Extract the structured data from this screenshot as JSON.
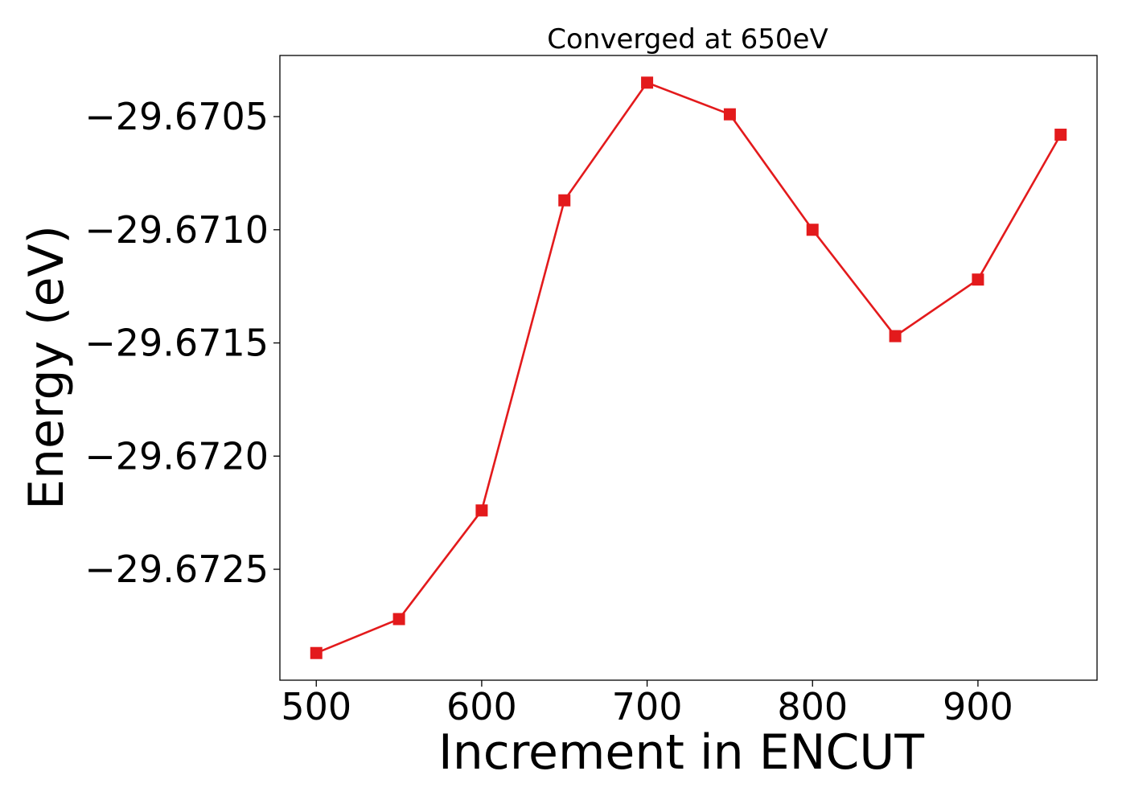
{
  "chart_data": {
    "type": "line",
    "title": "Converged at 650eV",
    "xlabel": "Increment in ENCUT",
    "ylabel": "Energy (eV)",
    "xlim": [
      478,
      972
    ],
    "ylim": [
      -29.67299,
      -29.67023
    ],
    "x_ticks": [
      500,
      600,
      700,
      800,
      900
    ],
    "x_tick_labels": [
      "500",
      "600",
      "700",
      "800",
      "900"
    ],
    "y_ticks": [
      -29.6705,
      -29.671,
      -29.6715,
      -29.672,
      -29.6725
    ],
    "y_tick_labels": [
      "−29.6705",
      "−29.6710",
      "−29.6715",
      "−29.6720",
      "−29.6725"
    ],
    "grid": false,
    "series": [
      {
        "color": "#e31a1c",
        "marker": "square",
        "x": [
          500,
          550,
          600,
          650,
          700,
          750,
          800,
          850,
          900,
          950
        ],
        "y": [
          -29.67287,
          -29.67272,
          -29.67224,
          -29.67087,
          -29.67035,
          -29.67049,
          -29.671,
          -29.67147,
          -29.67122,
          -29.67058
        ]
      }
    ]
  }
}
